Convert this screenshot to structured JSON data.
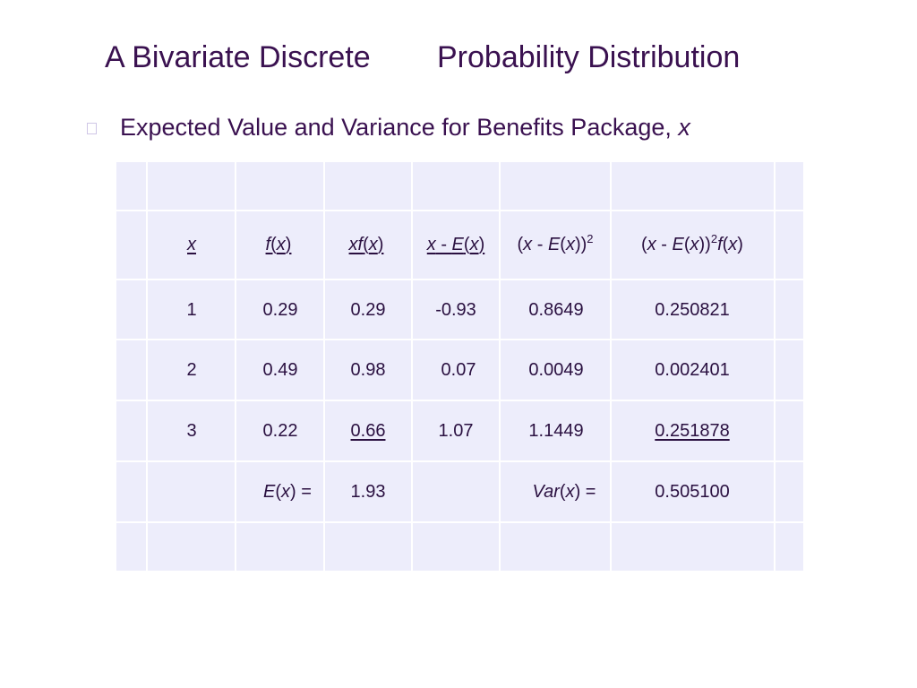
{
  "slide": {
    "title_part1": "A Bivariate Discrete",
    "title_part2": "Probability Distribution",
    "subtitle_text": "Expected Value and Variance for Benefits Package, ",
    "subtitle_var": "x"
  },
  "table": {
    "headers": {
      "x": "x",
      "fx": {
        "f": "f",
        "open": "(",
        "var": "x",
        "close": ")"
      },
      "xfx": {
        "xf": "xf",
        "open": "(",
        "var": "x",
        "close": ")"
      },
      "dev": {
        "x": "x",
        "mid": " - ",
        "E": "E",
        "open": "(",
        "var": "x",
        "close": ")"
      },
      "dev2": {
        "open": "(",
        "x": "x",
        "mid": " - ",
        "E": "E",
        "open2": "(",
        "var": "x",
        "close": "))",
        "sup": "2"
      },
      "dev2f": {
        "open": "(",
        "x": "x",
        "mid": " - ",
        "E": "E",
        "open2": "(",
        "var": "x",
        "close": "))",
        "sup": "2",
        "f": "f",
        "open3": "(",
        "var2": "x",
        "close2": ")"
      }
    },
    "rows": [
      {
        "x": "1",
        "fx": "0.29",
        "xfx": "0.29",
        "dev": "-0.93",
        "dev2": "0.8649",
        "dev2f": "0.250821"
      },
      {
        "x": "2",
        "fx": "0.49",
        "xfx": "0.98",
        "dev": "0.07",
        "dev2": "0.0049",
        "dev2f": "0.002401"
      },
      {
        "x": "3",
        "fx": "0.22",
        "xfx": "0.66",
        "dev": "1.07",
        "dev2": "1.1449",
        "dev2f": "0.251878"
      }
    ],
    "summary": {
      "ex_E": "E",
      "ex_open": "(",
      "ex_var": "x",
      "ex_close": ") =",
      "ex_value": "1.93",
      "var_Var": "Var",
      "var_open": "(",
      "var_var": "x",
      "var_close": ") =",
      "var_value": "0.505100"
    }
  },
  "colors": {
    "title": "#3a1150",
    "grid_fill": "#ededfb",
    "grid_lines": "#ffffff",
    "bullet_border": "#cfc6e6"
  }
}
